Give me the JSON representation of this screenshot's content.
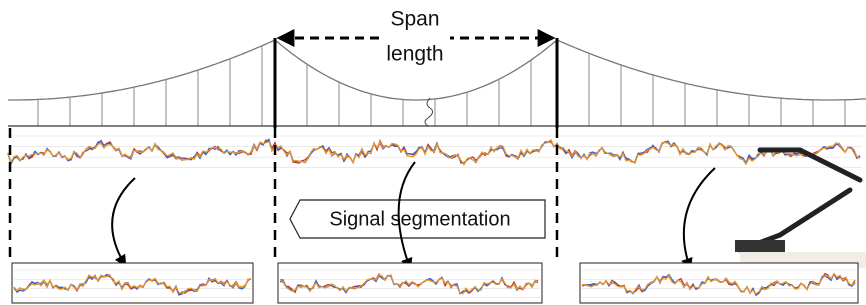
{
  "span_label": {
    "line1": "Span",
    "line2": "length"
  },
  "callout": "Signal segmentation"
}
